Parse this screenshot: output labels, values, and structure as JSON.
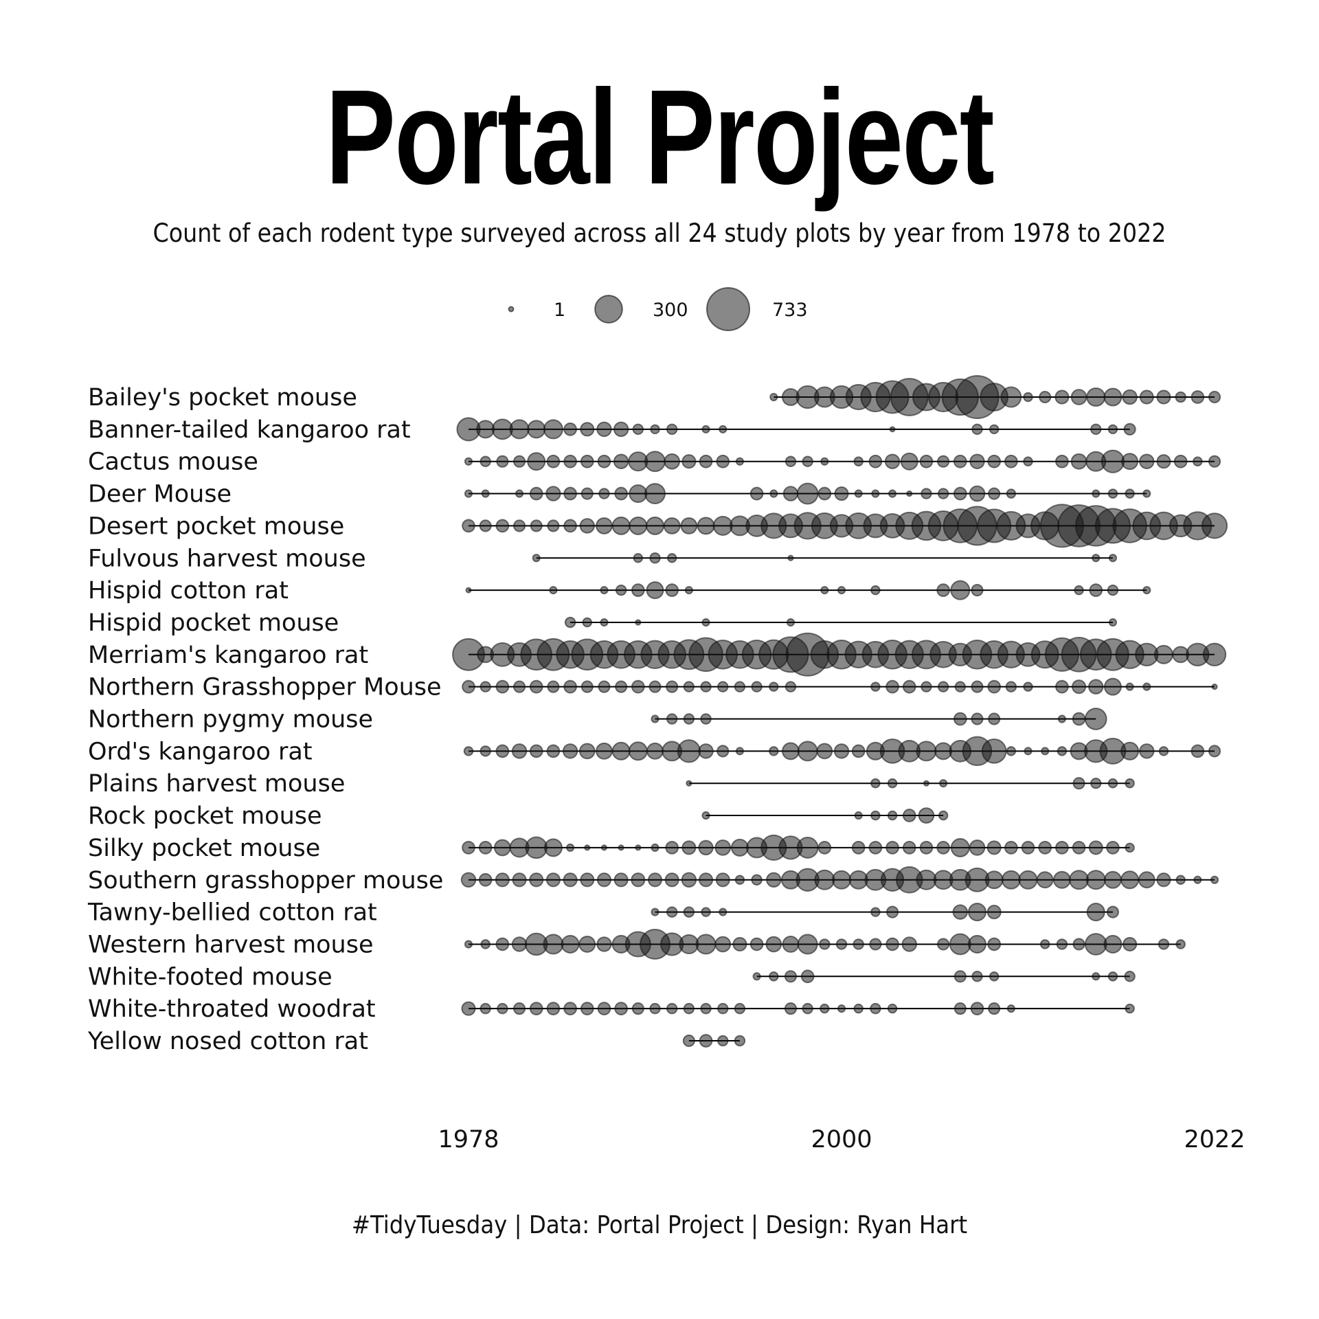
{
  "title": "Portal Project",
  "subtitle": "Count of each rodent type surveyed across all 24 study plots by year from 1978 to 2022",
  "caption": "#TidyTuesday | Data: Portal Project | Design: Ryan Hart",
  "chart_data": {
    "type": "scatter",
    "encoding": "bubble size = count per year",
    "x_ticks": [
      "1978",
      "2000",
      "2022"
    ],
    "xlim": [
      1978,
      2022
    ],
    "size_legend": [
      {
        "value": 1,
        "label": "1"
      },
      {
        "value": 300,
        "label": "300"
      },
      {
        "value": 733,
        "label": "733"
      }
    ],
    "series": [
      {
        "name": "Bailey's pocket mouse",
        "years": [
          1996,
          1997,
          1998,
          1999,
          2000,
          2001,
          2002,
          2003,
          2004,
          2005,
          2006,
          2007,
          2008,
          2009,
          2010,
          2011,
          2012,
          2013,
          2014,
          2015,
          2016,
          2017,
          2018,
          2019,
          2020,
          2021,
          2022
        ],
        "counts": [
          20,
          110,
          200,
          160,
          200,
          250,
          340,
          420,
          550,
          290,
          340,
          520,
          733,
          300,
          160,
          30,
          50,
          70,
          90,
          130,
          120,
          80,
          70,
          70,
          40,
          60,
          50
        ]
      },
      {
        "name": "Banner-tailed kangaroo rat",
        "years": [
          1978,
          1979,
          1980,
          1981,
          1982,
          1983,
          1984,
          1985,
          1986,
          1987,
          1988,
          1989,
          1990,
          1992,
          1993,
          2003,
          2008,
          2009,
          2015,
          2016,
          2017
        ],
        "counts": [
          210,
          120,
          160,
          140,
          120,
          140,
          60,
          70,
          80,
          80,
          40,
          30,
          40,
          20,
          20,
          5,
          40,
          30,
          40,
          30,
          50
        ]
      },
      {
        "name": "Cactus mouse",
        "years": [
          1978,
          1979,
          1980,
          1981,
          1982,
          1983,
          1984,
          1985,
          1986,
          1987,
          1988,
          1989,
          1990,
          1991,
          1992,
          1993,
          1994,
          1997,
          1998,
          1999,
          2001,
          2002,
          2003,
          2004,
          2005,
          2006,
          2007,
          2008,
          2009,
          2010,
          2011,
          2013,
          2014,
          2015,
          2016,
          2017,
          2018,
          2019,
          2020,
          2021,
          2022
        ],
        "counts": [
          20,
          40,
          50,
          50,
          120,
          60,
          60,
          60,
          60,
          80,
          140,
          160,
          90,
          70,
          60,
          60,
          20,
          40,
          40,
          20,
          30,
          60,
          80,
          110,
          60,
          50,
          60,
          80,
          60,
          60,
          30,
          60,
          90,
          150,
          200,
          100,
          80,
          70,
          60,
          30,
          50
        ]
      },
      {
        "name": "Deer Mouse",
        "years": [
          1978,
          1979,
          1981,
          1982,
          1983,
          1984,
          1985,
          1986,
          1987,
          1988,
          1989,
          1995,
          1996,
          1997,
          1998,
          1999,
          2000,
          2001,
          2002,
          2003,
          2004,
          2005,
          2006,
          2007,
          2008,
          2009,
          2010,
          2015,
          2016,
          2017,
          2018
        ],
        "counts": [
          20,
          20,
          20,
          60,
          80,
          60,
          50,
          40,
          60,
          120,
          160,
          60,
          20,
          80,
          170,
          60,
          70,
          20,
          20,
          20,
          10,
          40,
          40,
          60,
          90,
          50,
          30,
          20,
          30,
          30,
          20
        ]
      },
      {
        "name": "Desert pocket mouse",
        "years": [
          1978,
          1979,
          1980,
          1981,
          1982,
          1983,
          1984,
          1985,
          1986,
          1987,
          1988,
          1989,
          1990,
          1991,
          1992,
          1993,
          1994,
          1995,
          1996,
          1997,
          1998,
          1999,
          2000,
          2001,
          2002,
          2003,
          2004,
          2005,
          2006,
          2007,
          2008,
          2009,
          2010,
          2011,
          2012,
          2013,
          2014,
          2015,
          2016,
          2017,
          2018,
          2019,
          2020,
          2021,
          2022
        ],
        "counts": [
          60,
          50,
          60,
          50,
          50,
          50,
          60,
          80,
          100,
          120,
          120,
          120,
          100,
          100,
          110,
          140,
          150,
          180,
          250,
          220,
          280,
          260,
          200,
          260,
          220,
          230,
          290,
          330,
          350,
          450,
          600,
          440,
          320,
          220,
          310,
          733,
          700,
          650,
          480,
          450,
          300,
          300,
          190,
          310,
          250
        ]
      },
      {
        "name": "Fulvous harvest mouse",
        "years": [
          1982,
          1988,
          1989,
          1990,
          1997,
          2015,
          2016
        ],
        "counts": [
          20,
          30,
          40,
          30,
          10,
          20,
          20
        ]
      },
      {
        "name": "Hispid cotton rat",
        "years": [
          1978,
          1983,
          1986,
          1987,
          1988,
          1989,
          1990,
          1991,
          1999,
          2000,
          2002,
          2006,
          2007,
          2008,
          2014,
          2015,
          2016,
          2018
        ],
        "counts": [
          5,
          20,
          20,
          40,
          60,
          110,
          60,
          20,
          20,
          20,
          30,
          60,
          140,
          50,
          30,
          60,
          40,
          20
        ]
      },
      {
        "name": "Hispid pocket mouse",
        "years": [
          1984,
          1985,
          1986,
          1988,
          1992,
          1997,
          2016
        ],
        "counts": [
          40,
          30,
          20,
          10,
          20,
          20,
          20
        ]
      },
      {
        "name": "Merriam's kangaroo rat",
        "years": [
          1978,
          1979,
          1980,
          1981,
          1982,
          1983,
          1984,
          1985,
          1986,
          1987,
          1988,
          1989,
          1990,
          1991,
          1992,
          1993,
          1994,
          1995,
          1996,
          1997,
          1998,
          1999,
          2000,
          2001,
          2002,
          2003,
          2004,
          2005,
          2006,
          2007,
          2008,
          2009,
          2010,
          2011,
          2012,
          2013,
          2014,
          2015,
          2016,
          2017,
          2018,
          2019,
          2020,
          2021,
          2022
        ],
        "counts": [
          400,
          100,
          220,
          220,
          380,
          400,
          300,
          380,
          300,
          300,
          300,
          310,
          300,
          350,
          450,
          330,
          300,
          330,
          340,
          500,
          733,
          300,
          330,
          280,
          270,
          330,
          310,
          320,
          270,
          200,
          330,
          300,
          280,
          220,
          290,
          440,
          470,
          380,
          400,
          310,
          200,
          130,
          100,
          200,
          200
        ]
      },
      {
        "name": "Northern Grasshopper Mouse",
        "years": [
          1978,
          1979,
          1980,
          1981,
          1982,
          1983,
          1984,
          1985,
          1986,
          1987,
          1988,
          1989,
          1990,
          1991,
          1992,
          1993,
          1994,
          1995,
          1996,
          1997,
          2002,
          2003,
          2004,
          2005,
          2006,
          2007,
          2008,
          2009,
          2010,
          2011,
          2013,
          2014,
          2015,
          2016,
          2017,
          2018,
          2022
        ],
        "counts": [
          60,
          40,
          60,
          50,
          60,
          50,
          60,
          50,
          50,
          50,
          60,
          50,
          50,
          40,
          40,
          40,
          40,
          40,
          30,
          40,
          30,
          60,
          60,
          40,
          40,
          40,
          50,
          60,
          40,
          30,
          60,
          70,
          80,
          110,
          20,
          20,
          10
        ]
      },
      {
        "name": "Northern pygmy mouse",
        "years": [
          1989,
          1990,
          1991,
          1992,
          2007,
          2008,
          2009,
          2013,
          2014,
          2015
        ],
        "counts": [
          20,
          40,
          40,
          40,
          60,
          50,
          50,
          20,
          60,
          180
        ]
      },
      {
        "name": "Ord's kangaroo rat",
        "years": [
          1978,
          1979,
          1980,
          1981,
          1982,
          1983,
          1984,
          1985,
          1986,
          1987,
          1988,
          1989,
          1990,
          1991,
          1992,
          1993,
          1994,
          1996,
          1997,
          1998,
          1999,
          2000,
          2001,
          2002,
          2003,
          2004,
          2005,
          2006,
          2007,
          2008,
          2009,
          2010,
          2011,
          2012,
          2013,
          2014,
          2015,
          2016,
          2017,
          2018,
          2019,
          2021,
          2022
        ],
        "counts": [
          30,
          40,
          60,
          80,
          60,
          60,
          80,
          90,
          100,
          120,
          130,
          100,
          150,
          200,
          80,
          50,
          20,
          30,
          110,
          150,
          90,
          80,
          60,
          120,
          230,
          180,
          150,
          110,
          180,
          330,
          230,
          30,
          20,
          20,
          30,
          110,
          200,
          260,
          120,
          80,
          30,
          60,
          50
        ]
      },
      {
        "name": "Plains harvest mouse",
        "years": [
          1991,
          2002,
          2003,
          2005,
          2006,
          2014,
          2015,
          2016,
          2017
        ],
        "counts": [
          10,
          30,
          30,
          10,
          20,
          50,
          40,
          30,
          30
        ]
      },
      {
        "name": "Rock pocket mouse",
        "years": [
          1992,
          2001,
          2002,
          2003,
          2004,
          2005,
          2006
        ],
        "counts": [
          20,
          20,
          30,
          30,
          60,
          90,
          30
        ]
      },
      {
        "name": "Silky pocket mouse",
        "years": [
          1978,
          1979,
          1980,
          1981,
          1982,
          1983,
          1984,
          1985,
          1986,
          1987,
          1988,
          1989,
          1990,
          1991,
          1992,
          1993,
          1994,
          1995,
          1996,
          1997,
          1998,
          1999,
          2001,
          2002,
          2003,
          2004,
          2005,
          2006,
          2007,
          2008,
          2009,
          2010,
          2011,
          2012,
          2013,
          2014,
          2015,
          2016,
          2017
        ],
        "counts": [
          60,
          60,
          100,
          140,
          180,
          120,
          20,
          10,
          10,
          10,
          10,
          20,
          60,
          70,
          80,
          90,
          110,
          160,
          250,
          210,
          170,
          60,
          60,
          60,
          60,
          60,
          60,
          60,
          130,
          90,
          70,
          60,
          60,
          60,
          60,
          60,
          70,
          60,
          30
        ]
      },
      {
        "name": "Southern grasshopper mouse",
        "years": [
          1978,
          1979,
          1980,
          1981,
          1982,
          1983,
          1984,
          1985,
          1986,
          1987,
          1988,
          1989,
          1990,
          1991,
          1992,
          1993,
          1994,
          1995,
          1996,
          1997,
          1998,
          1999,
          2000,
          2001,
          2002,
          2003,
          2004,
          2005,
          2006,
          2007,
          2008,
          2009,
          2010,
          2011,
          2012,
          2013,
          2014,
          2015,
          2016,
          2017,
          2018,
          2019,
          2020,
          2021,
          2022
        ],
        "counts": [
          80,
          60,
          70,
          70,
          70,
          70,
          70,
          70,
          70,
          70,
          70,
          70,
          70,
          80,
          70,
          70,
          30,
          40,
          80,
          130,
          200,
          150,
          130,
          130,
          170,
          200,
          270,
          150,
          140,
          170,
          220,
          120,
          130,
          130,
          100,
          110,
          140,
          140,
          110,
          120,
          100,
          70,
          30,
          20,
          20
        ]
      },
      {
        "name": "Tawny-bellied cotton rat",
        "years": [
          1989,
          1990,
          1991,
          1992,
          1993,
          2002,
          2003,
          2007,
          2008,
          2009,
          2015,
          2016
        ],
        "counts": [
          20,
          40,
          40,
          30,
          20,
          30,
          50,
          80,
          120,
          70,
          120,
          50
        ]
      },
      {
        "name": "Western harvest mouse",
        "years": [
          1978,
          1979,
          1980,
          1981,
          1982,
          1983,
          1984,
          1985,
          1986,
          1987,
          1988,
          1989,
          1990,
          1991,
          1992,
          1993,
          1994,
          1995,
          1996,
          1997,
          1998,
          1999,
          2000,
          2001,
          2002,
          2003,
          2004,
          2006,
          2007,
          2008,
          2009,
          2012,
          2013,
          2014,
          2015,
          2016,
          2017,
          2019,
          2020
        ],
        "counts": [
          20,
          30,
          60,
          80,
          190,
          150,
          120,
          100,
          80,
          120,
          250,
          350,
          200,
          140,
          150,
          90,
          70,
          60,
          90,
          100,
          150,
          40,
          40,
          40,
          50,
          60,
          80,
          50,
          170,
          120,
          60,
          30,
          40,
          50,
          180,
          120,
          70,
          40,
          30
        ]
      },
      {
        "name": "White-footed mouse",
        "years": [
          1995,
          1996,
          1997,
          1998,
          2007,
          2008,
          2009,
          2015,
          2016,
          2017
        ],
        "counts": [
          20,
          30,
          50,
          60,
          50,
          40,
          30,
          20,
          30,
          40
        ]
      },
      {
        "name": "White-throated woodrat",
        "years": [
          1978,
          1979,
          1980,
          1981,
          1982,
          1983,
          1984,
          1985,
          1986,
          1987,
          1988,
          1989,
          1990,
          1991,
          1992,
          1993,
          1994,
          1997,
          1998,
          1999,
          2000,
          2001,
          2002,
          2003,
          2007,
          2008,
          2009,
          2010,
          2017
        ],
        "counts": [
          70,
          40,
          40,
          50,
          60,
          60,
          60,
          60,
          60,
          60,
          50,
          40,
          40,
          40,
          40,
          40,
          40,
          50,
          40,
          30,
          20,
          30,
          40,
          30,
          50,
          60,
          50,
          20,
          30
        ]
      },
      {
        "name": "Yellow nosed cotton rat",
        "years": [
          1991,
          1992,
          1993,
          1994
        ],
        "counts": [
          50,
          60,
          40,
          40
        ]
      }
    ]
  }
}
